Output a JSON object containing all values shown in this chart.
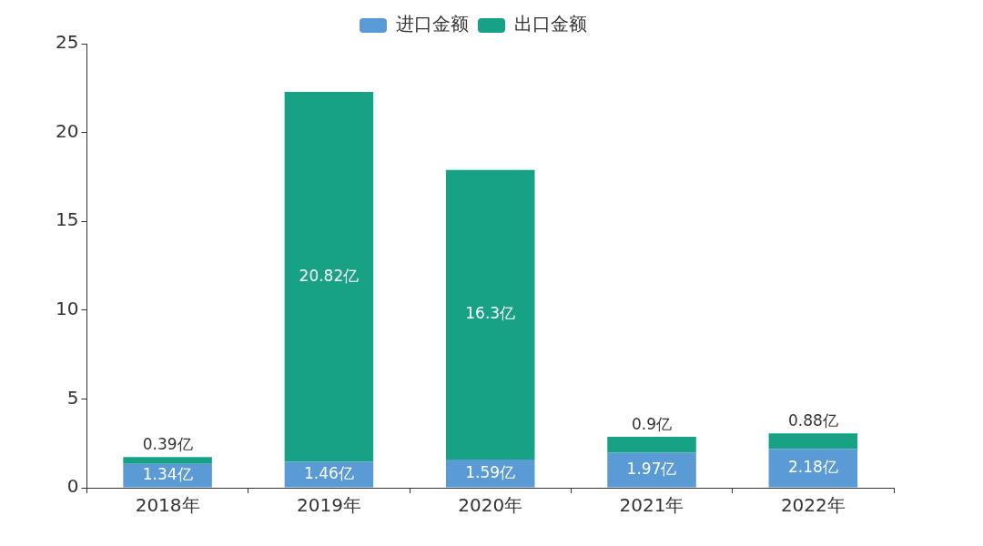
{
  "chart_data": {
    "type": "bar",
    "stacked": true,
    "legend": "top",
    "grid": false,
    "categories": [
      "2018年",
      "2019年",
      "2020年",
      "2021年",
      "2022年"
    ],
    "series": [
      {
        "name": "进口金额",
        "color": "#5b9bd5",
        "values": [
          1.34,
          1.46,
          1.59,
          1.97,
          2.18
        ],
        "value_labels": [
          "1.34亿",
          "1.46亿",
          "1.59亿",
          "1.97亿",
          "2.18亿"
        ]
      },
      {
        "name": "出口金额",
        "color": "#17a185",
        "values": [
          0.39,
          20.82,
          16.3,
          0.9,
          0.88
        ],
        "value_labels": [
          "0.39亿",
          "20.82亿",
          "16.3亿",
          "0.9亿",
          "0.88亿"
        ]
      }
    ],
    "ylim": [
      0,
      25
    ],
    "yticks": [
      0,
      5,
      10,
      15,
      20,
      25
    ]
  }
}
